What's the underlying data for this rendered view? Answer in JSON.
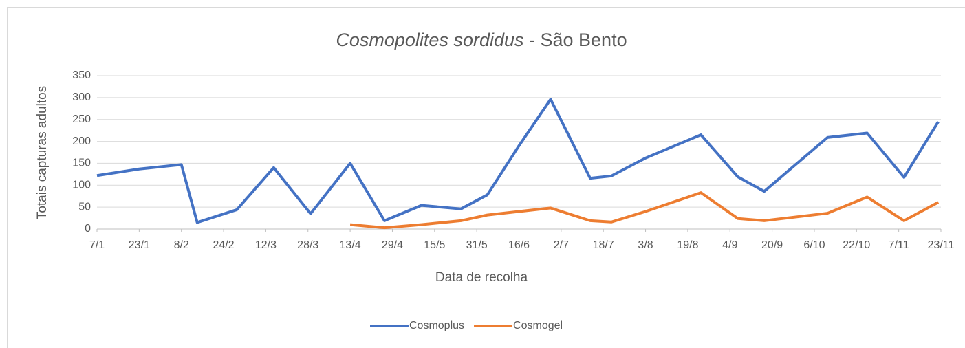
{
  "chart_data": {
    "type": "line",
    "title": [
      "Cosmopolites sordidus",
      " -  São Bento"
    ],
    "x_label": "Data de recolha",
    "y_label": "Totais capturas adultos",
    "x": [
      7,
      23,
      39,
      45,
      60,
      74,
      88,
      103,
      116,
      130,
      145,
      155,
      167,
      179,
      194,
      202,
      215,
      236,
      250,
      260,
      284,
      299,
      313,
      326
    ],
    "series": [
      {
        "name": "Cosmoplus",
        "color": "#4472c4",
        "values": [
          122,
          137,
          147,
          15,
          44,
          140,
          35,
          150,
          19,
          54,
          46,
          78,
          190,
          296,
          116,
          121,
          162,
          215,
          119,
          86,
          209,
          219,
          118,
          245
        ]
      },
      {
        "name": "Cosmogel",
        "color": "#ed7d31",
        "values": [
          null,
          null,
          null,
          null,
          null,
          null,
          null,
          10,
          3,
          10,
          19,
          32,
          40,
          48,
          19,
          16,
          40,
          83,
          24,
          19,
          36,
          73,
          19,
          61
        ]
      }
    ],
    "xlim": [
      7,
      327
    ],
    "xticks": [
      {
        "value": 7,
        "label": "7/1"
      },
      {
        "value": 23,
        "label": "23/1"
      },
      {
        "value": 39,
        "label": "8/2"
      },
      {
        "value": 55,
        "label": "24/2"
      },
      {
        "value": 71,
        "label": "12/3"
      },
      {
        "value": 87,
        "label": "28/3"
      },
      {
        "value": 103,
        "label": "13/4"
      },
      {
        "value": 119,
        "label": "29/4"
      },
      {
        "value": 135,
        "label": "15/5"
      },
      {
        "value": 151,
        "label": "31/5"
      },
      {
        "value": 167,
        "label": "16/6"
      },
      {
        "value": 183,
        "label": "2/7"
      },
      {
        "value": 199,
        "label": "18/7"
      },
      {
        "value": 215,
        "label": "3/8"
      },
      {
        "value": 231,
        "label": "19/8"
      },
      {
        "value": 247,
        "label": "4/9"
      },
      {
        "value": 263,
        "label": "20/9"
      },
      {
        "value": 279,
        "label": "6/10"
      },
      {
        "value": 295,
        "label": "22/10"
      },
      {
        "value": 311,
        "label": "7/11"
      },
      {
        "value": 327,
        "label": "23/11"
      }
    ],
    "ylim": [
      0,
      350
    ],
    "yticks": [
      0,
      50,
      100,
      150,
      200,
      250,
      300,
      350
    ],
    "grid": true,
    "legend": "bottom"
  }
}
